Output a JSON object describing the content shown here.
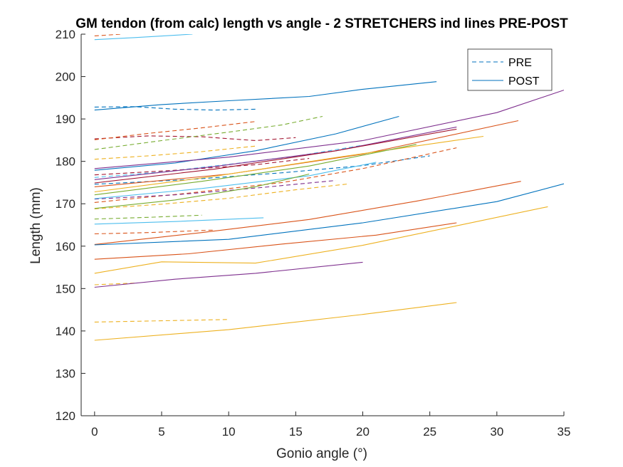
{
  "chart_data": {
    "type": "line",
    "title": "GM tendon (from calc) length vs angle - 2 STRETCHERS ind lines PRE-POST",
    "xlabel": "Gonio angle (°)",
    "ylabel": "Length (mm)",
    "xlim": [
      -1,
      35
    ],
    "ylim": [
      120,
      210
    ],
    "xticks": [
      0,
      5,
      10,
      15,
      20,
      25,
      30,
      35
    ],
    "yticks": [
      120,
      130,
      140,
      150,
      160,
      170,
      180,
      190,
      200,
      210
    ],
    "grid": false,
    "legend": {
      "location": "top-right",
      "entries": [
        {
          "label": "PRE",
          "style": "dashed",
          "color": "#0072BD"
        },
        {
          "label": "POST",
          "style": "solid",
          "color": "#0072BD"
        }
      ]
    },
    "series": [
      {
        "style": "dashed",
        "color": "#D95319",
        "x": [
          0,
          2
        ],
        "y": [
          209.6,
          210
        ]
      },
      {
        "style": "dashed",
        "color": "#0072BD",
        "x": [
          0,
          3,
          6,
          9,
          12
        ],
        "y": [
          192.8,
          192.9,
          192.3,
          192.1,
          192.3
        ]
      },
      {
        "style": "dashed",
        "color": "#A2142F",
        "x": [
          0,
          4,
          8,
          12,
          15
        ],
        "y": [
          185.3,
          186.0,
          185.8,
          184.9,
          185.6
        ]
      },
      {
        "style": "dashed",
        "color": "#77AC30",
        "x": [
          0,
          5,
          10,
          14,
          17
        ],
        "y": [
          182.8,
          184.9,
          186.9,
          188.6,
          190.6
        ]
      },
      {
        "style": "dashed",
        "color": "#D95319",
        "x": [
          0,
          4,
          8,
          12
        ],
        "y": [
          185.1,
          186.6,
          187.9,
          189.4
        ]
      },
      {
        "style": "dashed",
        "color": "#EDB120",
        "x": [
          0,
          4,
          8,
          12
        ],
        "y": [
          180.5,
          181.3,
          182.3,
          183.6
        ]
      },
      {
        "style": "dashed",
        "color": "#4DBEEE",
        "x": [
          0,
          5,
          10,
          15,
          20
        ],
        "y": [
          176.2,
          177.5,
          179.3,
          181.2,
          183.8
        ]
      },
      {
        "style": "dashed",
        "color": "#0072BD",
        "x": [
          0,
          7,
          14,
          20,
          25
        ],
        "y": [
          174.6,
          175.7,
          177.3,
          179.0,
          181.3
        ]
      },
      {
        "style": "dashed",
        "color": "#A2142F",
        "x": [
          0,
          6,
          12,
          16
        ],
        "y": [
          176.8,
          177.9,
          179.2,
          180.7
        ]
      },
      {
        "style": "dashed",
        "color": "#D95319",
        "x": [
          0,
          7,
          14,
          20,
          27
        ],
        "y": [
          170.3,
          172.5,
          175.0,
          178.3,
          183.2
        ]
      },
      {
        "style": "dashed",
        "color": "#EDB120",
        "x": [
          0,
          5,
          10,
          15,
          19
        ],
        "y": [
          168.8,
          169.9,
          171.3,
          173.3,
          174.7
        ]
      },
      {
        "style": "dashed",
        "color": "#7E2F8E",
        "x": [
          0,
          6,
          12,
          18
        ],
        "y": [
          171.1,
          172.1,
          173.7,
          175.5
        ]
      },
      {
        "style": "dashed",
        "color": "#77AC30",
        "x": [
          0,
          4,
          8
        ],
        "y": [
          166.4,
          166.8,
          167.3
        ]
      },
      {
        "style": "dashed",
        "color": "#D95319",
        "x": [
          0,
          4,
          9
        ],
        "y": [
          162.9,
          163.2,
          163.8
        ]
      },
      {
        "style": "dashed",
        "color": "#EDB120",
        "x": [
          0,
          3
        ],
        "y": [
          150.9,
          151.3
        ]
      },
      {
        "style": "dashed",
        "color": "#EDB120",
        "x": [
          0,
          5,
          10
        ],
        "y": [
          142.1,
          142.4,
          142.7
        ]
      },
      {
        "style": "solid",
        "color": "#4DBEEE",
        "x": [
          0,
          3,
          7.3
        ],
        "y": [
          208.7,
          209.2,
          210
        ]
      },
      {
        "style": "solid",
        "color": "#0072BD",
        "x": [
          0,
          5,
          10,
          16,
          20,
          25.5
        ],
        "y": [
          192.1,
          193.4,
          194.3,
          195.3,
          197.0,
          198.8
        ]
      },
      {
        "style": "solid",
        "color": "#0072BD",
        "x": [
          0,
          6,
          12,
          18,
          22.7
        ],
        "y": [
          177.9,
          179.6,
          182.5,
          186.5,
          190.6
        ]
      },
      {
        "style": "solid",
        "color": "#7E2F8E",
        "x": [
          0,
          10,
          20,
          30,
          35
        ],
        "y": [
          178.3,
          181.0,
          184.9,
          191.5,
          196.8
        ]
      },
      {
        "style": "solid",
        "color": "#7E2F8E",
        "x": [
          0,
          9,
          18,
          27
        ],
        "y": [
          175.7,
          178.8,
          182.5,
          188.1
        ]
      },
      {
        "style": "solid",
        "color": "#D95319",
        "x": [
          0,
          10,
          20,
          31.6
        ],
        "y": [
          174.0,
          177.0,
          181.7,
          189.6
        ]
      },
      {
        "style": "solid",
        "color": "#EDB120",
        "x": [
          0,
          9,
          18,
          29
        ],
        "y": [
          172.8,
          176.5,
          180.9,
          185.9
        ]
      },
      {
        "style": "solid",
        "color": "#77AC30",
        "x": [
          0,
          8,
          16,
          24
        ],
        "y": [
          172.1,
          175.3,
          178.9,
          184.0
        ]
      },
      {
        "style": "solid",
        "color": "#4DBEEE",
        "x": [
          0,
          8,
          16,
          21
        ],
        "y": [
          171.2,
          173.6,
          176.6,
          179.8
        ]
      },
      {
        "style": "solid",
        "color": "#77AC30",
        "x": [
          0,
          6,
          12,
          16
        ],
        "y": [
          168.9,
          170.9,
          174.0,
          177.0
        ]
      },
      {
        "style": "solid",
        "color": "#A2142F",
        "x": [
          0,
          9,
          18,
          27
        ],
        "y": [
          174.9,
          178.2,
          182.5,
          187.6
        ]
      },
      {
        "style": "solid",
        "color": "#4DBEEE",
        "x": [
          0,
          6,
          12.6
        ],
        "y": [
          165.2,
          165.8,
          166.7
        ]
      },
      {
        "style": "solid",
        "color": "#D95319",
        "x": [
          0,
          8,
          16,
          24,
          31.8
        ],
        "y": [
          160.4,
          163.2,
          166.3,
          170.6,
          175.3
        ]
      },
      {
        "style": "solid",
        "color": "#0072BD",
        "x": [
          0,
          10,
          20,
          30,
          35
        ],
        "y": [
          160.3,
          161.6,
          165.5,
          170.5,
          174.7
        ]
      },
      {
        "style": "solid",
        "color": "#D95319",
        "x": [
          0,
          7,
          14,
          21,
          27
        ],
        "y": [
          156.9,
          158.2,
          160.5,
          162.6,
          165.5
        ]
      },
      {
        "style": "solid",
        "color": "#EDB120",
        "x": [
          0,
          5,
          12,
          20,
          27,
          33.8
        ],
        "y": [
          153.6,
          156.3,
          156.0,
          160.2,
          164.8,
          169.3
        ]
      },
      {
        "style": "solid",
        "color": "#7E2F8E",
        "x": [
          0,
          6,
          12,
          20
        ],
        "y": [
          150.3,
          152.2,
          153.6,
          156.2
        ]
      },
      {
        "style": "solid",
        "color": "#EDB120",
        "x": [
          0,
          10,
          20,
          27
        ],
        "y": [
          137.8,
          140.3,
          143.9,
          146.7
        ]
      }
    ]
  }
}
